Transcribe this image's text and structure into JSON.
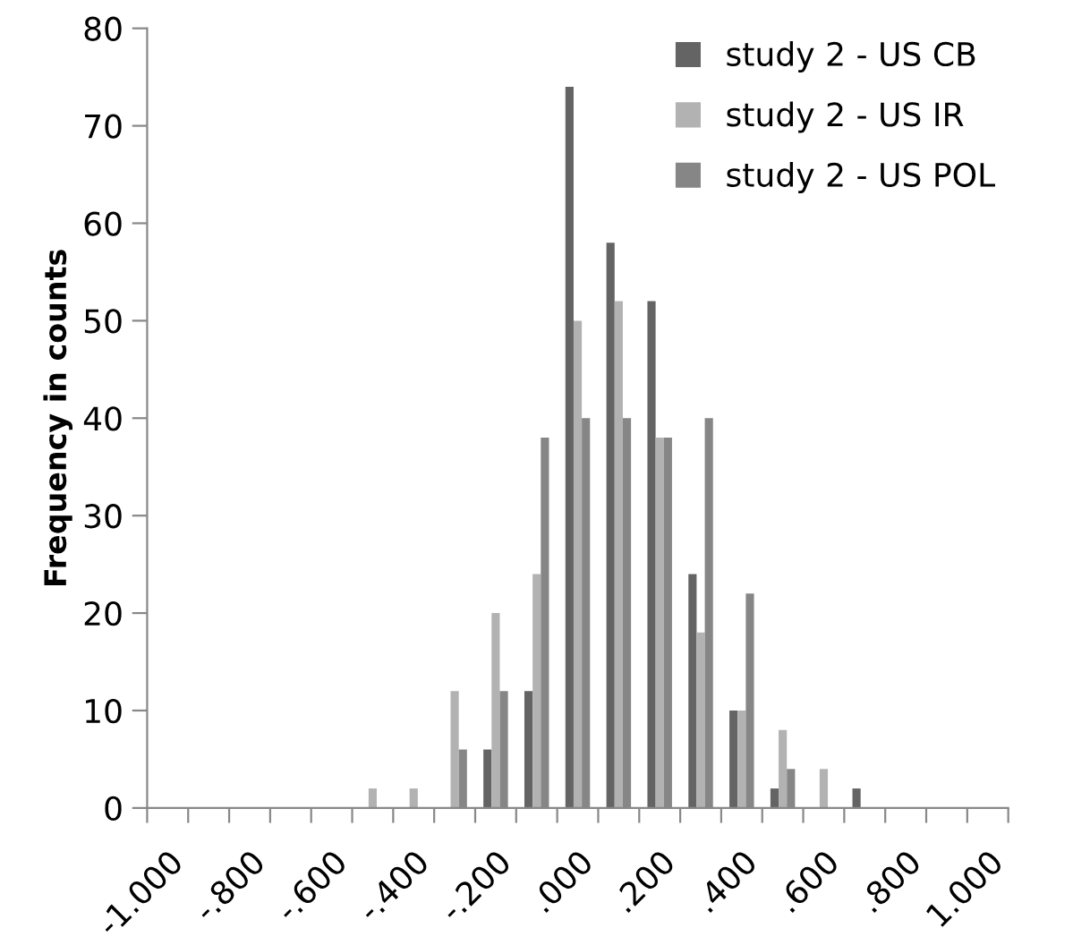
{
  "chart_data": {
    "type": "bar",
    "ylabel": "Frequency in counts",
    "categories": [
      "-1.000",
      null,
      "-.800",
      null,
      "-.600",
      null,
      "-.400",
      null,
      "-.200",
      null,
      ".000",
      null,
      ".200",
      null,
      ".400",
      null,
      ".600",
      null,
      ".800",
      null,
      "1.000"
    ],
    "series": [
      {
        "name": "study 2 - US CB",
        "color": "#646464",
        "values": [
          0,
          0,
          0,
          0,
          0,
          0,
          0,
          0,
          6,
          12,
          74,
          58,
          52,
          24,
          10,
          2,
          0,
          2,
          0,
          0,
          0
        ]
      },
      {
        "name": "study 2 - US IR",
        "color": "#b2b2b2",
        "values": [
          0,
          0,
          0,
          0,
          0,
          2,
          2,
          12,
          20,
          24,
          50,
          52,
          38,
          18,
          10,
          8,
          4,
          0,
          0,
          0,
          0
        ]
      },
      {
        "name": "study 2 - US POL",
        "color": "#868686",
        "values": [
          0,
          0,
          0,
          0,
          0,
          0,
          0,
          6,
          12,
          38,
          40,
          40,
          38,
          40,
          22,
          4,
          0,
          0,
          0,
          0,
          0
        ]
      }
    ],
    "ylim": [
      0,
      80
    ],
    "yticks": [
      0,
      10,
      20,
      30,
      40,
      50,
      60,
      70,
      80
    ],
    "grid": false,
    "legend": "top right"
  }
}
